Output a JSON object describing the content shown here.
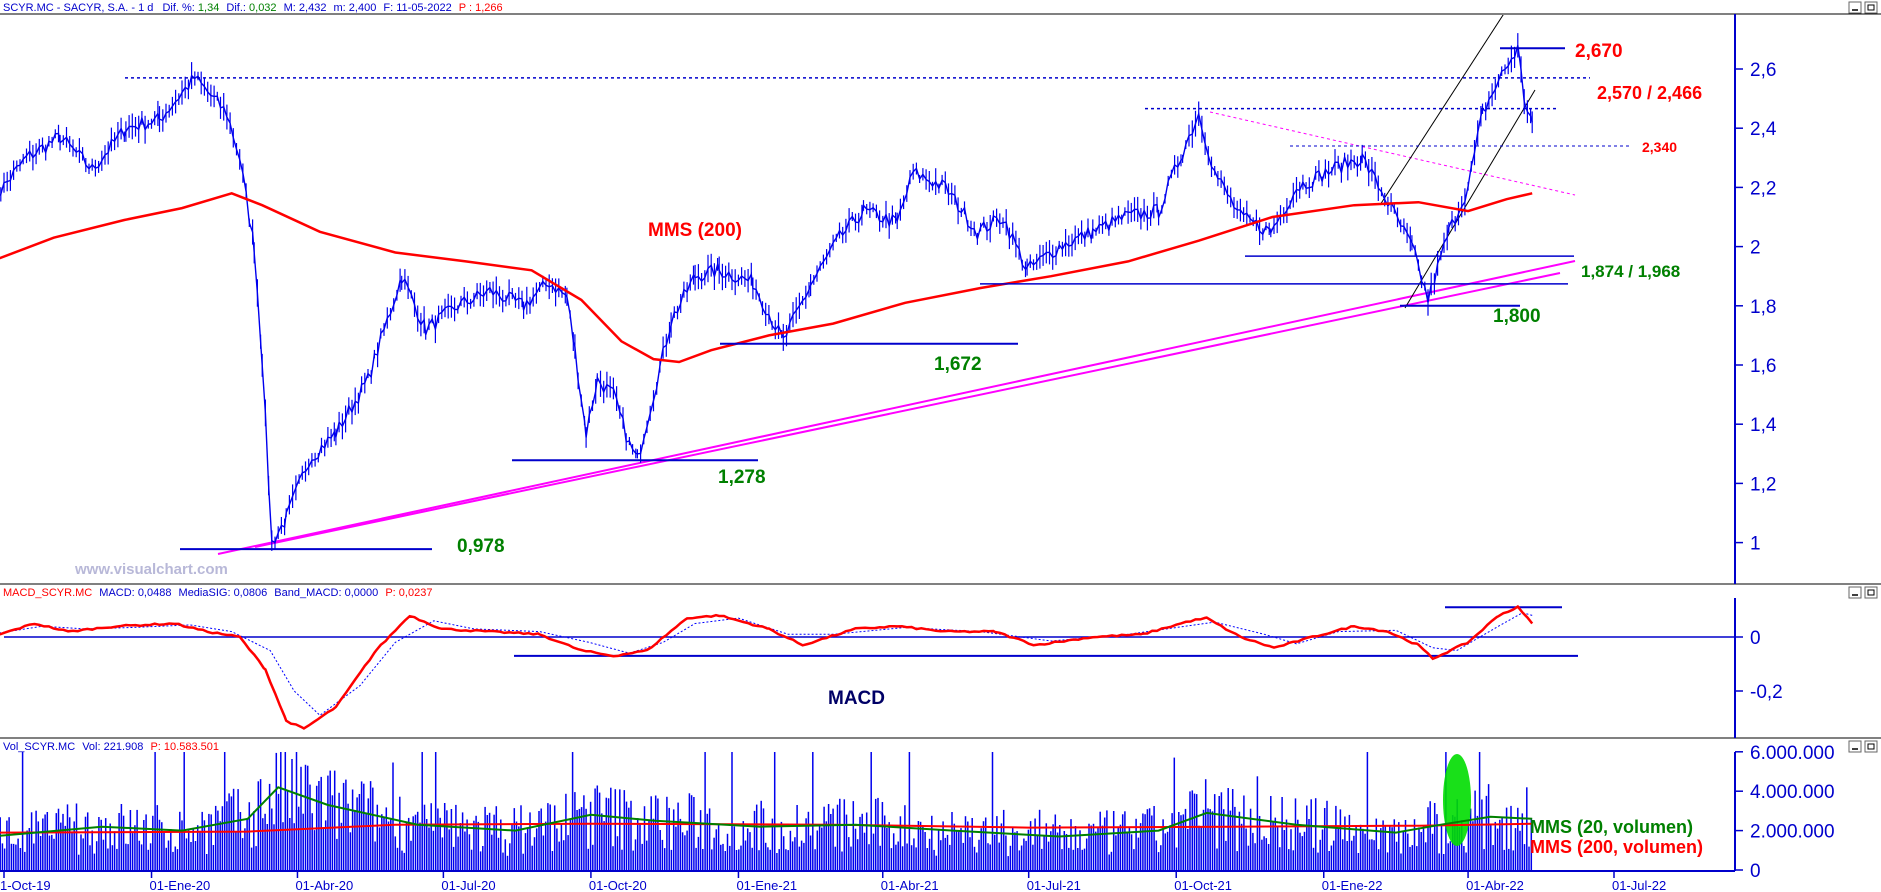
{
  "headers": {
    "price": {
      "symbol": "SCYR.MC - SACYR, S.A. - 1 d",
      "dif_pct_label": "Dif. %:",
      "dif_pct": "1,34",
      "dif_label": "Dif.:",
      "dif": "0,032",
      "max_label": "M:",
      "max": "2,432",
      "min_label": "m:",
      "min": "2,400",
      "date_label": "F:",
      "date": "11-05-2022",
      "last_label": "P :",
      "last": "1,266"
    },
    "macd": {
      "name": "MACD_SCYR.MC",
      "macd_label": "MACD:",
      "macd": "0,0488",
      "sig_label": "MediaSIG:",
      "sig": "0,0806",
      "band_label": "Band_MACD:",
      "band": "0,0000",
      "p_label": "P:",
      "p": "0,0237"
    },
    "volume": {
      "name": "Vol_SCYR.MC",
      "vol_label": "Vol:",
      "vol": "221.908",
      "p_label": "P:",
      "p": "10.583.501"
    }
  },
  "colors": {
    "price": "#0000ee",
    "mms200": "#ff0000",
    "trend": "#ff00ff",
    "macd_line": "#ff0000",
    "macd_signal": "#0000ff",
    "vol_mms20": "#008000",
    "vol_mms200": "#ff0000",
    "green_level": "#008000",
    "red_level": "#ff0000",
    "highlight": "#00dd00"
  },
  "watermark": "www.visualchart.com",
  "chart_data": [
    {
      "type": "line",
      "title": "SCYR.MC - SACYR, S.A.",
      "x_ticks": [
        "1-Oct-19",
        "01-Ene-20",
        "01-Abr-20",
        "01-Jul-20",
        "01-Oct-20",
        "01-Ene-21",
        "01-Abr-21",
        "01-Jul-21",
        "01-Oct-21",
        "01-Ene-22",
        "01-Abr-22",
        "01-Jul-22"
      ],
      "y_ticks": [
        "2,6",
        "2,4",
        "2,2",
        "2",
        "1,8",
        "1,6",
        "1,4",
        "1,2",
        "1"
      ],
      "ylim": [
        0.87,
        2.77
      ],
      "series": [
        {
          "name": "",
          "points": [
            [
              "2019-09-23",
              2.15
            ],
            [
              "2019-10-15",
              2.3
            ],
            [
              "2019-11-05",
              2.37
            ],
            [
              "2019-11-25",
              2.26
            ],
            [
              "2019-12-16",
              2.4
            ],
            [
              "2020-01-06",
              2.43
            ],
            [
              "2020-01-28",
              2.57
            ],
            [
              "2020-02-17",
              2.45
            ],
            [
              "2020-02-25",
              2.3
            ],
            [
              "2020-03-05",
              2.0
            ],
            [
              "2020-03-10",
              1.62
            ],
            [
              "2020-03-16",
              1.0
            ],
            [
              "2020-03-25",
              1.08
            ],
            [
              "2020-04-08",
              1.28
            ],
            [
              "2020-04-25",
              1.37
            ],
            [
              "2020-05-15",
              1.55
            ],
            [
              "2020-06-05",
              1.9
            ],
            [
              "2020-06-20",
              1.72
            ],
            [
              "2020-07-10",
              1.8
            ],
            [
              "2020-07-30",
              1.85
            ],
            [
              "2020-08-20",
              1.8
            ],
            [
              "2020-09-05",
              1.88
            ],
            [
              "2020-09-16",
              1.83
            ],
            [
              "2020-09-21",
              1.65
            ],
            [
              "2020-09-28",
              1.37
            ],
            [
              "2020-10-05",
              1.55
            ],
            [
              "2020-10-15",
              1.5
            ],
            [
              "2020-10-25",
              1.33
            ],
            [
              "2020-10-30",
              1.28
            ],
            [
              "2020-11-09",
              1.5
            ],
            [
              "2020-11-20",
              1.75
            ],
            [
              "2020-12-05",
              1.9
            ],
            [
              "2020-12-20",
              1.92
            ],
            [
              "2021-01-10",
              1.88
            ],
            [
              "2021-01-29",
              1.68
            ],
            [
              "2021-02-15",
              1.87
            ],
            [
              "2021-03-05",
              2.03
            ],
            [
              "2021-03-20",
              2.12
            ],
            [
              "2021-04-10",
              2.08
            ],
            [
              "2021-04-20",
              2.25
            ],
            [
              "2021-05-10",
              2.2
            ],
            [
              "2021-05-30",
              2.05
            ],
            [
              "2021-06-15",
              2.1
            ],
            [
              "2021-06-30",
              1.92
            ],
            [
              "2021-07-20",
              2.0
            ],
            [
              "2021-08-10",
              2.05
            ],
            [
              "2021-08-30",
              2.1
            ],
            [
              "2021-09-20",
              2.12
            ],
            [
              "2021-10-05",
              2.32
            ],
            [
              "2021-10-15",
              2.45
            ],
            [
              "2021-10-25",
              2.25
            ],
            [
              "2021-11-10",
              2.1
            ],
            [
              "2021-11-29",
              2.05
            ],
            [
              "2021-12-15",
              2.2
            ],
            [
              "2022-01-10",
              2.27
            ],
            [
              "2022-01-25",
              2.3
            ],
            [
              "2022-02-10",
              2.15
            ],
            [
              "2022-02-25",
              2.0
            ],
            [
              "2022-03-07",
              1.82
            ],
            [
              "2022-03-20",
              2.05
            ],
            [
              "2022-04-01",
              2.2
            ],
            [
              "2022-04-10",
              2.45
            ],
            [
              "2022-04-22",
              2.58
            ],
            [
              "2022-05-02",
              2.67
            ],
            [
              "2022-05-06",
              2.5
            ],
            [
              "2022-05-11",
              2.42
            ]
          ]
        },
        {
          "name": "MMS (200)",
          "points": [
            [
              "2019-09-23",
              1.95
            ],
            [
              "2019-11-01",
              2.03
            ],
            [
              "2019-12-15",
              2.09
            ],
            [
              "2020-01-20",
              2.13
            ],
            [
              "2020-02-20",
              2.18
            ],
            [
              "2020-03-10",
              2.14
            ],
            [
              "2020-04-15",
              2.05
            ],
            [
              "2020-06-01",
              1.98
            ],
            [
              "2020-07-15",
              1.95
            ],
            [
              "2020-08-25",
              1.92
            ],
            [
              "2020-09-25",
              1.82
            ],
            [
              "2020-10-20",
              1.68
            ],
            [
              "2020-11-09",
              1.62
            ],
            [
              "2020-11-25",
              1.61
            ],
            [
              "2020-12-15",
              1.65
            ],
            [
              "2021-01-20",
              1.7
            ],
            [
              "2021-03-01",
              1.74
            ],
            [
              "2021-04-15",
              1.81
            ],
            [
              "2021-06-01",
              1.86
            ],
            [
              "2021-07-15",
              1.9
            ],
            [
              "2021-09-01",
              1.95
            ],
            [
              "2021-10-15",
              2.02
            ],
            [
              "2021-11-30",
              2.1
            ],
            [
              "2022-01-20",
              2.14
            ],
            [
              "2022-03-01",
              2.15
            ],
            [
              "2022-04-01",
              2.12
            ],
            [
              "2022-04-25",
              2.16
            ],
            [
              "2022-05-11",
              2.18
            ]
          ]
        }
      ],
      "levels": [
        {
          "label": "2,670",
          "value": 2.67
        },
        {
          "label": "2,570 / 2,466",
          "values": [
            2.57,
            2.466
          ]
        },
        {
          "label": "2,340",
          "value": 2.34
        },
        {
          "label": "1,874 / 1,968",
          "values": [
            1.874,
            1.968
          ]
        },
        {
          "label": "1,800",
          "value": 1.8
        },
        {
          "label": "1,672",
          "value": 1.672
        },
        {
          "label": "1,278",
          "value": 1.278
        },
        {
          "label": "0,978",
          "value": 0.978
        }
      ]
    },
    {
      "type": "line",
      "title": "MACD",
      "y_ticks": [
        "0",
        "-0,2"
      ],
      "ylim": [
        -0.37,
        0.13
      ],
      "series": [
        {
          "name": "MACD",
          "points": [
            [
              "2019-09-23",
              0.0
            ],
            [
              "2019-10-20",
              0.05
            ],
            [
              "2019-11-10",
              0.02
            ],
            [
              "2019-12-10",
              0.04
            ],
            [
              "2020-01-15",
              0.05
            ],
            [
              "2020-02-05",
              0.02
            ],
            [
              "2020-02-25",
              0.0
            ],
            [
              "2020-03-12",
              -0.12
            ],
            [
              "2020-03-25",
              -0.31
            ],
            [
              "2020-04-05",
              -0.34
            ],
            [
              "2020-04-25",
              -0.26
            ],
            [
              "2020-05-20",
              -0.05
            ],
            [
              "2020-06-10",
              0.08
            ],
            [
              "2020-06-30",
              0.03
            ],
            [
              "2020-07-30",
              0.02
            ],
            [
              "2020-08-30",
              0.01
            ],
            [
              "2020-09-25",
              -0.05
            ],
            [
              "2020-10-15",
              -0.07
            ],
            [
              "2020-11-05",
              -0.05
            ],
            [
              "2020-11-30",
              0.07
            ],
            [
              "2020-12-20",
              0.08
            ],
            [
              "2021-01-20",
              0.03
            ],
            [
              "2021-02-10",
              -0.03
            ],
            [
              "2021-03-15",
              0.03
            ],
            [
              "2021-04-10",
              0.04
            ],
            [
              "2021-05-10",
              0.02
            ],
            [
              "2021-06-10",
              0.02
            ],
            [
              "2021-07-05",
              -0.03
            ],
            [
              "2021-08-10",
              0.0
            ],
            [
              "2021-09-10",
              0.01
            ],
            [
              "2021-10-10",
              0.06
            ],
            [
              "2021-10-20",
              0.07
            ],
            [
              "2021-11-10",
              0.0
            ],
            [
              "2021-12-01",
              -0.04
            ],
            [
              "2021-12-25",
              0.0
            ],
            [
              "2022-01-20",
              0.04
            ],
            [
              "2022-02-10",
              0.02
            ],
            [
              "2022-03-01",
              -0.03
            ],
            [
              "2022-03-10",
              -0.08
            ],
            [
              "2022-04-01",
              -0.02
            ],
            [
              "2022-04-20",
              0.08
            ],
            [
              "2022-05-02",
              0.11
            ],
            [
              "2022-05-11",
              0.05
            ]
          ]
        },
        {
          "name": "MediaSIG",
          "points": [
            [
              "2019-09-23",
              0.01
            ],
            [
              "2019-10-25",
              0.04
            ],
            [
              "2019-11-20",
              0.03
            ],
            [
              "2019-12-20",
              0.035
            ],
            [
              "2020-01-25",
              0.045
            ],
            [
              "2020-02-20",
              0.02
            ],
            [
              "2020-03-15",
              -0.05
            ],
            [
              "2020-03-30",
              -0.2
            ],
            [
              "2020-04-15",
              -0.29
            ],
            [
              "2020-05-10",
              -0.18
            ],
            [
              "2020-06-01",
              -0.02
            ],
            [
              "2020-06-25",
              0.06
            ],
            [
              "2020-07-20",
              0.03
            ],
            [
              "2020-08-30",
              0.02
            ],
            [
              "2020-09-30",
              -0.02
            ],
            [
              "2020-10-25",
              -0.06
            ],
            [
              "2020-11-15",
              -0.02
            ],
            [
              "2020-12-05",
              0.05
            ],
            [
              "2021-01-01",
              0.07
            ],
            [
              "2021-02-01",
              0.01
            ],
            [
              "2021-03-01",
              0.01
            ],
            [
              "2021-04-15",
              0.035
            ],
            [
              "2021-06-01",
              0.02
            ],
            [
              "2021-07-15",
              -0.015
            ],
            [
              "2021-09-01",
              0.01
            ],
            [
              "2021-10-25",
              0.055
            ],
            [
              "2021-11-25",
              0.01
            ],
            [
              "2021-12-15",
              -0.025
            ],
            [
              "2022-01-10",
              0.02
            ],
            [
              "2022-02-15",
              0.025
            ],
            [
              "2022-03-10",
              -0.04
            ],
            [
              "2022-03-25",
              -0.05
            ],
            [
              "2022-04-20",
              0.04
            ],
            [
              "2022-05-05",
              0.09
            ],
            [
              "2022-05-11",
              0.08
            ]
          ]
        }
      ],
      "levels": [
        0.0,
        -0.07,
        0.11
      ]
    },
    {
      "type": "bar",
      "title": "Vol_SCYR.MC",
      "y_ticks": [
        "6.000.000",
        "4.000.000",
        "2.000.000",
        "0"
      ],
      "ylim": [
        0,
        7400000
      ],
      "series": [
        {
          "name": "MMS (20, volumen)",
          "points": [
            [
              "2019-09-23",
              1700000
            ],
            [
              "2019-12-01",
              2200000
            ],
            [
              "2020-01-20",
              2000000
            ],
            [
              "2020-03-01",
              2600000
            ],
            [
              "2020-03-20",
              4200000
            ],
            [
              "2020-04-20",
              3300000
            ],
            [
              "2020-06-15",
              2300000
            ],
            [
              "2020-08-15",
              2000000
            ],
            [
              "2020-10-01",
              2800000
            ],
            [
              "2020-11-10",
              2500000
            ],
            [
              "2021-01-15",
              2200000
            ],
            [
              "2021-03-15",
              2300000
            ],
            [
              "2021-05-15",
              2000000
            ],
            [
              "2021-07-20",
              1700000
            ],
            [
              "2021-09-20",
              2000000
            ],
            [
              "2021-10-20",
              2900000
            ],
            [
              "2021-12-15",
              2300000
            ],
            [
              "2022-02-15",
              1900000
            ],
            [
              "2022-03-15",
              2300000
            ],
            [
              "2022-04-15",
              2700000
            ],
            [
              "2022-05-11",
              2600000
            ]
          ]
        },
        {
          "name": "MMS (200, volumen)",
          "points": [
            [
              "2019-09-23",
              1900000
            ],
            [
              "2020-03-01",
              1950000
            ],
            [
              "2020-06-01",
              2300000
            ],
            [
              "2020-10-01",
              2350000
            ],
            [
              "2021-03-01",
              2300000
            ],
            [
              "2021-07-01",
              2150000
            ],
            [
              "2021-11-01",
              2200000
            ],
            [
              "2022-03-01",
              2250000
            ],
            [
              "2022-05-11",
              2350000
            ]
          ]
        }
      ],
      "bar_color": "#0000ee"
    }
  ]
}
